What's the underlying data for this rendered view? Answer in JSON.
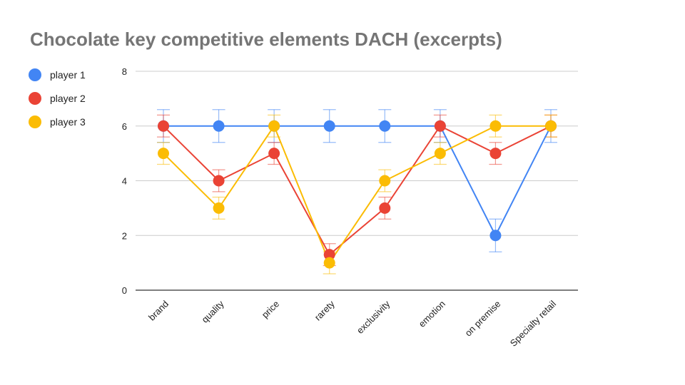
{
  "chart_data": {
    "type": "line",
    "title": "Chocolate key competitive elements DACH (excerpts)",
    "categories": [
      "brand",
      "quality",
      "price",
      "rarety",
      "exclusivity",
      "emotion",
      "on premise",
      "Specialty retail"
    ],
    "series": [
      {
        "name": "player 1",
        "color": "#4285f4",
        "values": [
          6,
          6,
          6,
          6,
          6,
          6,
          2,
          6
        ],
        "error": 0.6
      },
      {
        "name": "player 2",
        "color": "#ea4335",
        "values": [
          6,
          4,
          5,
          1.3,
          3,
          6,
          5,
          6
        ],
        "error": 0.4
      },
      {
        "name": "player 3",
        "color": "#fbbc04",
        "values": [
          5,
          3,
          6,
          1,
          4,
          5,
          6,
          6
        ],
        "error": 0.4
      }
    ],
    "ylim": [
      0,
      8
    ],
    "yticks": [
      0,
      2,
      4,
      6,
      8
    ],
    "grid": true,
    "legend": "left",
    "error_bars": true
  }
}
